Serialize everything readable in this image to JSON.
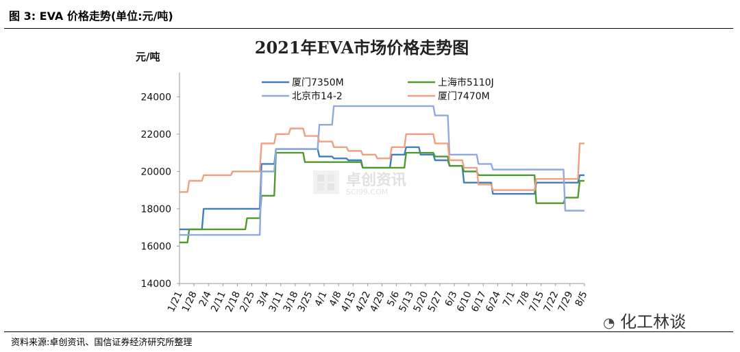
{
  "caption": "图 3:  EVA 价格走势(单位:元/吨)",
  "source": "资料来源:卓创资讯、国信证券经济研究所整理",
  "watermark": {
    "main": "卓创资讯",
    "sub": "SCI99.COM"
  },
  "wechat": "化工林谈",
  "colors": {
    "xiamen_7350M": "#3d7ebf",
    "shanghai_5110J": "#4f9a2c",
    "beijing_14_2": "#8fa9e0",
    "xiamen_7470M": "#f0a07e"
  },
  "chart_data": {
    "type": "line",
    "title": "2021年EVA市场价格走势图",
    "ylabel": "元/吨",
    "xlabel": "",
    "ylim": [
      14000,
      25000
    ],
    "yticks": [
      14000,
      16000,
      18000,
      20000,
      22000,
      24000
    ],
    "x": [
      "1/21",
      "1/28",
      "2/4",
      "2/11",
      "2/18",
      "2/25",
      "3/4",
      "3/11",
      "3/18",
      "3/25",
      "4/1",
      "4/8",
      "4/15",
      "4/22",
      "4/29",
      "5/6",
      "5/13",
      "5/20",
      "5/27",
      "6/3",
      "6/10",
      "6/17",
      "6/24",
      "7/1",
      "7/8",
      "7/15",
      "7/22",
      "7/29",
      "8/5"
    ],
    "legend_position": "top",
    "series": [
      {
        "name": "厦门7350M",
        "color_key": "xiamen_7350M",
        "values": [
          16900,
          16900,
          18000,
          18000,
          18000,
          18000,
          20400,
          21200,
          21200,
          21200,
          20800,
          20700,
          20600,
          20200,
          20200,
          20900,
          21300,
          20900,
          20600,
          20300,
          19400,
          19400,
          18800,
          18800,
          18800,
          19400,
          19400,
          19400,
          19800
        ]
      },
      {
        "name": "上海市5110J",
        "color_key": "shanghai_5110J",
        "values": [
          16200,
          16900,
          16900,
          16900,
          16900,
          17500,
          18700,
          21000,
          21000,
          20500,
          20500,
          20500,
          20500,
          20200,
          20200,
          20200,
          21000,
          21000,
          20800,
          20300,
          20000,
          19800,
          19800,
          19800,
          19800,
          18300,
          18300,
          18600,
          19500
        ]
      },
      {
        "name": "北京市14-2",
        "color_key": "beijing_14_2",
        "values": [
          16600,
          16600,
          16600,
          16600,
          16600,
          16600,
          20000,
          21200,
          21200,
          21200,
          22500,
          23500,
          23500,
          23500,
          23500,
          23500,
          23500,
          23500,
          23000,
          20900,
          20900,
          20400,
          20100,
          20100,
          20100,
          20100,
          20100,
          17900,
          17900
        ]
      },
      {
        "name": "厦门7470M",
        "color_key": "xiamen_7470M",
        "values": [
          18900,
          19500,
          19800,
          19800,
          20000,
          20000,
          21500,
          22000,
          22300,
          21900,
          21600,
          21300,
          21100,
          20900,
          20700,
          21300,
          22000,
          22000,
          21500,
          20600,
          20200,
          19300,
          19000,
          19000,
          19000,
          19600,
          19600,
          19600,
          21500
        ]
      }
    ]
  }
}
